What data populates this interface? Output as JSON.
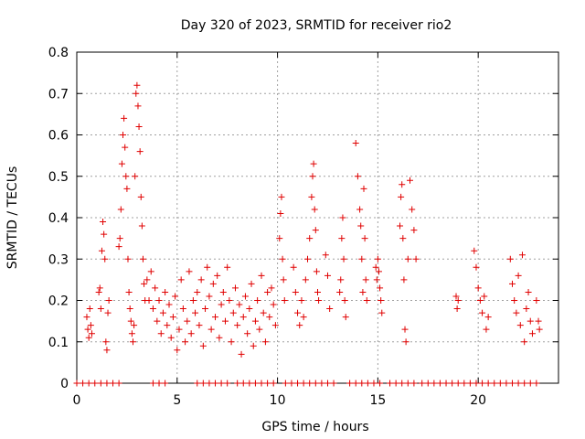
{
  "chart_data": {
    "type": "scatter",
    "title": "Day 320 of 2023, SRMTID for receiver rio2",
    "xlabel": "GPS time / hours",
    "ylabel": "SRMTID / TECUs",
    "xlim": [
      0,
      24
    ],
    "ylim": [
      0,
      0.8
    ],
    "xticks": [
      0,
      5,
      10,
      15,
      20
    ],
    "xtick_labels": [
      "0",
      "5",
      "10",
      "15",
      "20"
    ],
    "yticks": [
      0,
      0.1,
      0.2,
      0.3,
      0.4,
      0.5,
      0.6,
      0.7,
      0.8
    ],
    "ytick_labels": [
      "0",
      "0.1",
      "0.2",
      "0.3",
      "0.4",
      "0.5",
      "0.6",
      "0.7",
      "0.8"
    ],
    "grid": true,
    "marker": "plus",
    "color": "#e00000",
    "series": [
      {
        "name": "rio2",
        "points": [
          [
            0.5,
            0.16
          ],
          [
            0.55,
            0.13
          ],
          [
            0.6,
            0.11
          ],
          [
            0.65,
            0.18
          ],
          [
            0.7,
            0.14
          ],
          [
            0.75,
            0.12
          ],
          [
            1.1,
            0.22
          ],
          [
            1.15,
            0.23
          ],
          [
            1.2,
            0.18
          ],
          [
            1.25,
            0.32
          ],
          [
            1.3,
            0.39
          ],
          [
            1.35,
            0.36
          ],
          [
            1.4,
            0.3
          ],
          [
            1.45,
            0.1
          ],
          [
            1.5,
            0.08
          ],
          [
            1.55,
            0.17
          ],
          [
            1.6,
            0.2
          ],
          [
            2.1,
            0.33
          ],
          [
            2.15,
            0.35
          ],
          [
            2.2,
            0.42
          ],
          [
            2.25,
            0.53
          ],
          [
            2.3,
            0.6
          ],
          [
            2.35,
            0.64
          ],
          [
            2.4,
            0.57
          ],
          [
            2.45,
            0.5
          ],
          [
            2.5,
            0.47
          ],
          [
            2.55,
            0.3
          ],
          [
            2.6,
            0.22
          ],
          [
            2.65,
            0.18
          ],
          [
            2.7,
            0.15
          ],
          [
            2.75,
            0.12
          ],
          [
            2.8,
            0.1
          ],
          [
            2.85,
            0.14
          ],
          [
            2.9,
            0.5
          ],
          [
            2.95,
            0.7
          ],
          [
            3.0,
            0.72
          ],
          [
            3.05,
            0.67
          ],
          [
            3.1,
            0.62
          ],
          [
            3.15,
            0.56
          ],
          [
            3.2,
            0.45
          ],
          [
            3.25,
            0.38
          ],
          [
            3.3,
            0.3
          ],
          [
            3.35,
            0.24
          ],
          [
            3.4,
            0.2
          ],
          [
            3.5,
            0.25
          ],
          [
            3.6,
            0.2
          ],
          [
            3.7,
            0.27
          ],
          [
            3.8,
            0.18
          ],
          [
            3.9,
            0.23
          ],
          [
            4.0,
            0.15
          ],
          [
            4.1,
            0.2
          ],
          [
            4.2,
            0.12
          ],
          [
            4.3,
            0.17
          ],
          [
            4.4,
            0.22
          ],
          [
            4.5,
            0.14
          ],
          [
            4.6,
            0.19
          ],
          [
            4.7,
            0.11
          ],
          [
            4.8,
            0.16
          ],
          [
            4.9,
            0.21
          ],
          [
            5.0,
            0.08
          ],
          [
            5.1,
            0.13
          ],
          [
            5.2,
            0.25
          ],
          [
            5.3,
            0.18
          ],
          [
            5.4,
            0.1
          ],
          [
            5.5,
            0.15
          ],
          [
            5.6,
            0.27
          ],
          [
            5.7,
            0.12
          ],
          [
            5.8,
            0.2
          ],
          [
            5.9,
            0.17
          ],
          [
            6.0,
            0.22
          ],
          [
            6.1,
            0.14
          ],
          [
            6.2,
            0.25
          ],
          [
            6.3,
            0.09
          ],
          [
            6.4,
            0.18
          ],
          [
            6.5,
            0.28
          ],
          [
            6.6,
            0.21
          ],
          [
            6.7,
            0.13
          ],
          [
            6.8,
            0.24
          ],
          [
            6.9,
            0.16
          ],
          [
            7.0,
            0.26
          ],
          [
            7.1,
            0.11
          ],
          [
            7.2,
            0.19
          ],
          [
            7.3,
            0.22
          ],
          [
            7.4,
            0.15
          ],
          [
            7.5,
            0.28
          ],
          [
            7.6,
            0.2
          ],
          [
            7.7,
            0.1
          ],
          [
            7.8,
            0.17
          ],
          [
            7.9,
            0.23
          ],
          [
            8.0,
            0.14
          ],
          [
            8.1,
            0.19
          ],
          [
            8.2,
            0.07
          ],
          [
            8.3,
            0.16
          ],
          [
            8.4,
            0.21
          ],
          [
            8.5,
            0.12
          ],
          [
            8.6,
            0.18
          ],
          [
            8.7,
            0.24
          ],
          [
            8.8,
            0.09
          ],
          [
            8.9,
            0.15
          ],
          [
            9.0,
            0.2
          ],
          [
            9.1,
            0.13
          ],
          [
            9.2,
            0.26
          ],
          [
            9.3,
            0.17
          ],
          [
            9.4,
            0.1
          ],
          [
            9.5,
            0.22
          ],
          [
            9.6,
            0.16
          ],
          [
            9.7,
            0.23
          ],
          [
            9.8,
            0.19
          ],
          [
            9.9,
            0.14
          ],
          [
            10.1,
            0.35
          ],
          [
            10.15,
            0.41
          ],
          [
            10.2,
            0.45
          ],
          [
            10.25,
            0.3
          ],
          [
            10.3,
            0.25
          ],
          [
            10.35,
            0.2
          ],
          [
            10.8,
            0.28
          ],
          [
            10.9,
            0.22
          ],
          [
            11.0,
            0.17
          ],
          [
            11.1,
            0.14
          ],
          [
            11.2,
            0.2
          ],
          [
            11.3,
            0.16
          ],
          [
            11.4,
            0.25
          ],
          [
            11.5,
            0.3
          ],
          [
            11.6,
            0.35
          ],
          [
            11.7,
            0.45
          ],
          [
            11.75,
            0.5
          ],
          [
            11.8,
            0.53
          ],
          [
            11.85,
            0.42
          ],
          [
            11.9,
            0.37
          ],
          [
            11.95,
            0.27
          ],
          [
            12.0,
            0.22
          ],
          [
            12.05,
            0.2
          ],
          [
            12.4,
            0.31
          ],
          [
            12.5,
            0.26
          ],
          [
            12.6,
            0.18
          ],
          [
            13.1,
            0.22
          ],
          [
            13.15,
            0.25
          ],
          [
            13.2,
            0.35
          ],
          [
            13.25,
            0.4
          ],
          [
            13.3,
            0.3
          ],
          [
            13.35,
            0.2
          ],
          [
            13.4,
            0.16
          ],
          [
            13.9,
            0.58
          ],
          [
            14.0,
            0.5
          ],
          [
            14.1,
            0.42
          ],
          [
            14.15,
            0.38
          ],
          [
            14.2,
            0.3
          ],
          [
            14.25,
            0.22
          ],
          [
            14.3,
            0.47
          ],
          [
            14.35,
            0.35
          ],
          [
            14.4,
            0.25
          ],
          [
            14.45,
            0.2
          ],
          [
            14.9,
            0.28
          ],
          [
            14.95,
            0.25
          ],
          [
            15.0,
            0.3
          ],
          [
            15.05,
            0.27
          ],
          [
            15.1,
            0.23
          ],
          [
            15.15,
            0.2
          ],
          [
            15.2,
            0.17
          ],
          [
            16.1,
            0.38
          ],
          [
            16.15,
            0.45
          ],
          [
            16.2,
            0.48
          ],
          [
            16.25,
            0.35
          ],
          [
            16.3,
            0.25
          ],
          [
            16.35,
            0.13
          ],
          [
            16.4,
            0.1
          ],
          [
            16.5,
            0.3
          ],
          [
            16.6,
            0.49
          ],
          [
            16.7,
            0.42
          ],
          [
            16.8,
            0.37
          ],
          [
            16.9,
            0.3
          ],
          [
            18.9,
            0.21
          ],
          [
            18.95,
            0.18
          ],
          [
            19.0,
            0.2
          ],
          [
            19.8,
            0.32
          ],
          [
            19.9,
            0.28
          ],
          [
            20.0,
            0.23
          ],
          [
            20.1,
            0.2
          ],
          [
            20.2,
            0.17
          ],
          [
            20.3,
            0.21
          ],
          [
            20.4,
            0.13
          ],
          [
            20.5,
            0.16
          ],
          [
            21.6,
            0.3
          ],
          [
            21.7,
            0.24
          ],
          [
            21.8,
            0.2
          ],
          [
            21.9,
            0.17
          ],
          [
            22.0,
            0.26
          ],
          [
            22.1,
            0.14
          ],
          [
            22.2,
            0.31
          ],
          [
            22.3,
            0.1
          ],
          [
            22.4,
            0.18
          ],
          [
            22.5,
            0.22
          ],
          [
            22.6,
            0.15
          ],
          [
            22.7,
            0.12
          ],
          [
            22.9,
            0.2
          ],
          [
            23.0,
            0.15
          ],
          [
            23.05,
            0.13
          ]
        ]
      },
      {
        "name": "zero-level",
        "y": 0,
        "x_ranges": [
          [
            0.0,
            2.3
          ],
          [
            3.8,
            4.6
          ],
          [
            6.0,
            7.5
          ],
          [
            8.0,
            10.0
          ],
          [
            10.4,
            13.0
          ],
          [
            13.6,
            15.2
          ],
          [
            15.6,
            16.8
          ],
          [
            17.2,
            22.9
          ]
        ],
        "step": 0.3
      }
    ]
  }
}
